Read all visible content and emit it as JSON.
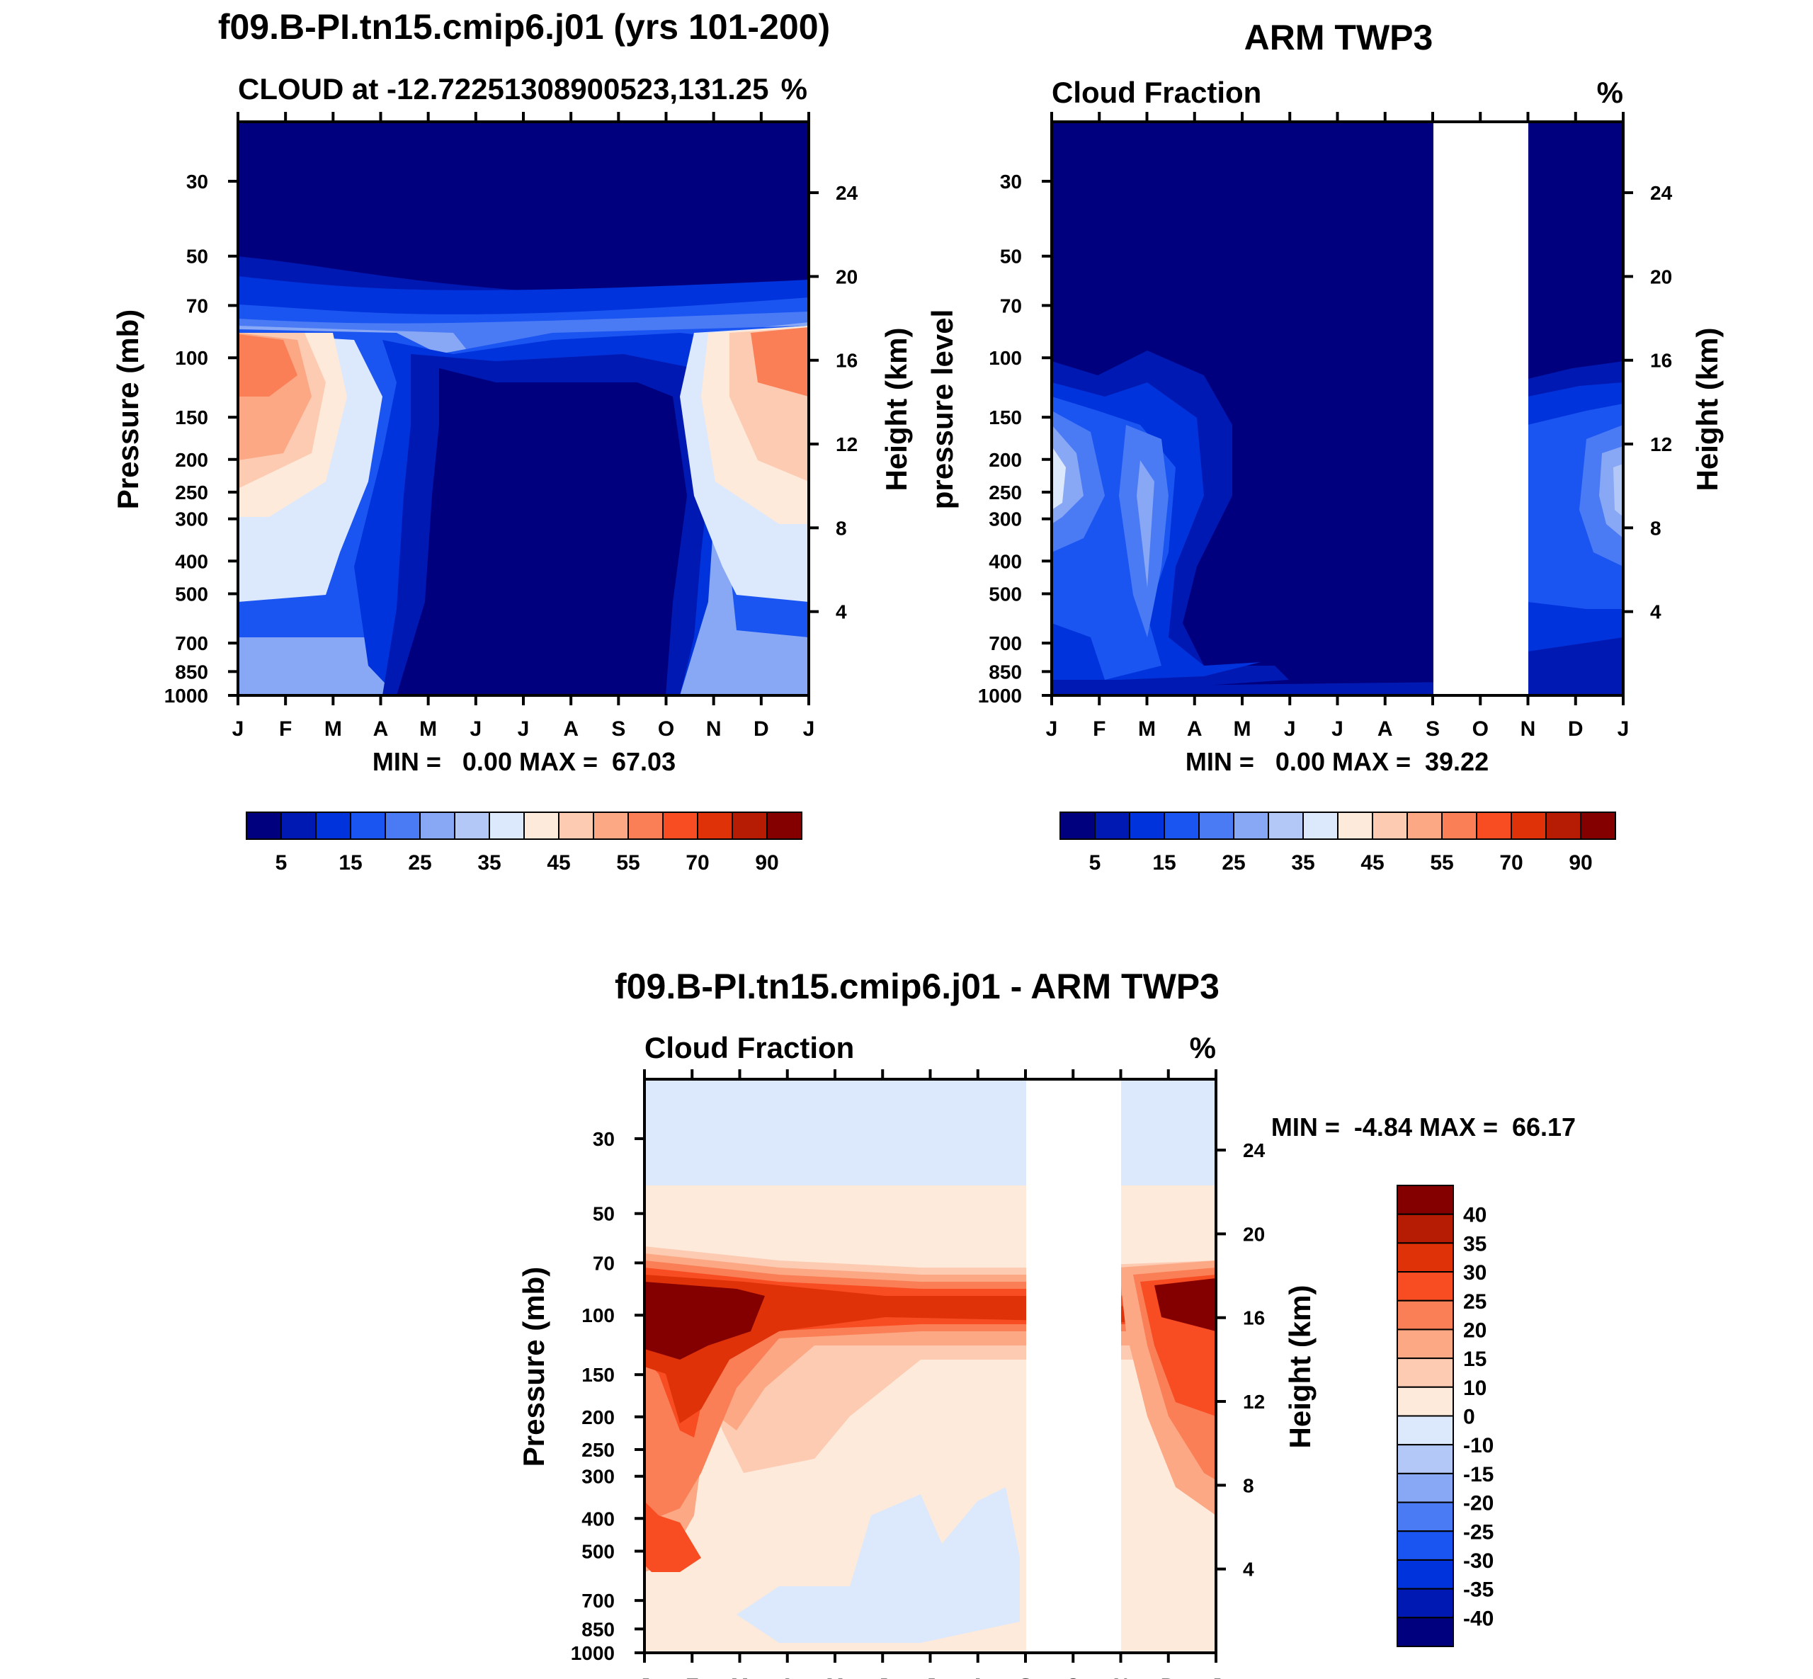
{
  "chart_data": [
    {
      "id": "model",
      "type": "contour",
      "figure_title": "f09.B-PI.tn15.cmip6.j01 (yrs 101-200)",
      "left_title": "CLOUD at -12.72251308900523,131.25",
      "right_title": "%",
      "ylabel_left": "Pressure (mb)",
      "ylabel_right": "Height (km)",
      "x_ticks": [
        "J",
        "F",
        "M",
        "A",
        "M",
        "J",
        "J",
        "A",
        "S",
        "O",
        "N",
        "D",
        "J"
      ],
      "y_ticks": [
        "30",
        "50",
        "70",
        "100",
        "150",
        "200",
        "250",
        "300",
        "400",
        "500",
        "700",
        "850",
        "1000"
      ],
      "y2_ticks": [
        "24",
        "20",
        "16",
        "12",
        "8",
        "4"
      ],
      "stats": "MIN =   0.00 MAX =  67.03",
      "colorbar_labels": [
        "5",
        "15",
        "25",
        "35",
        "45",
        "55",
        "70",
        "90"
      ],
      "missing_months": []
    },
    {
      "id": "obs",
      "type": "contour",
      "figure_title": "ARM TWP3",
      "left_title": "Cloud Fraction",
      "right_title": "%",
      "ylabel_left": "pressure level",
      "ylabel_right": "Height (km)",
      "x_ticks": [
        "J",
        "F",
        "M",
        "A",
        "M",
        "J",
        "J",
        "A",
        "S",
        "O",
        "N",
        "D",
        "J"
      ],
      "y_ticks": [
        "30",
        "50",
        "70",
        "100",
        "150",
        "200",
        "250",
        "300",
        "400",
        "500",
        "700",
        "850",
        "1000"
      ],
      "y2_ticks": [
        "24",
        "20",
        "16",
        "12",
        "8",
        "4"
      ],
      "stats": "MIN =   0.00 MAX =  39.22",
      "colorbar_labels": [
        "5",
        "15",
        "25",
        "35",
        "45",
        "55",
        "70",
        "90"
      ],
      "missing_months": [
        "Oct"
      ]
    },
    {
      "id": "diff",
      "type": "contour",
      "figure_title": "f09.B-PI.tn15.cmip6.j01 - ARM TWP3",
      "left_title": "Cloud Fraction",
      "right_title": "%",
      "ylabel_left": "Pressure (mb)",
      "ylabel_right": "Height (km)",
      "x_ticks": [
        "J",
        "F",
        "M",
        "A",
        "M",
        "J",
        "J",
        "A",
        "S",
        "O",
        "N",
        "D",
        "J"
      ],
      "y_ticks": [
        "30",
        "50",
        "70",
        "100",
        "150",
        "200",
        "250",
        "300",
        "400",
        "500",
        "700",
        "850",
        "1000"
      ],
      "y2_ticks": [
        "24",
        "20",
        "16",
        "12",
        "8",
        "4"
      ],
      "stats": "MIN =  -4.84 MAX =  66.17",
      "colorbar_labels": [
        "40",
        "35",
        "30",
        "25",
        "20",
        "15",
        "10",
        "0",
        "-10",
        "-15",
        "-20",
        "-25",
        "-30",
        "-35",
        "-40"
      ],
      "missing_months": [
        "Oct"
      ]
    }
  ],
  "colors": {
    "abs_scale": [
      "#00007e",
      "#0019b2",
      "#0033dc",
      "#1a55f2",
      "#4a7bf5",
      "#88a8f5",
      "#b4c8f7",
      "#dce8fb",
      "#feeadb",
      "#fdcbb2",
      "#fca885",
      "#fa7e56",
      "#f84c22",
      "#df3209",
      "#b61c03",
      "#840000"
    ],
    "diff_scale": [
      "#840000",
      "#b61c03",
      "#df3209",
      "#f84c22",
      "#fa7e56",
      "#fca885",
      "#fdcbb2",
      "#feeadb",
      "#dce8fb",
      "#b4c8f7",
      "#88a8f5",
      "#4a7bf5",
      "#1a55f2",
      "#0033dc",
      "#0019b2",
      "#00007e"
    ]
  }
}
